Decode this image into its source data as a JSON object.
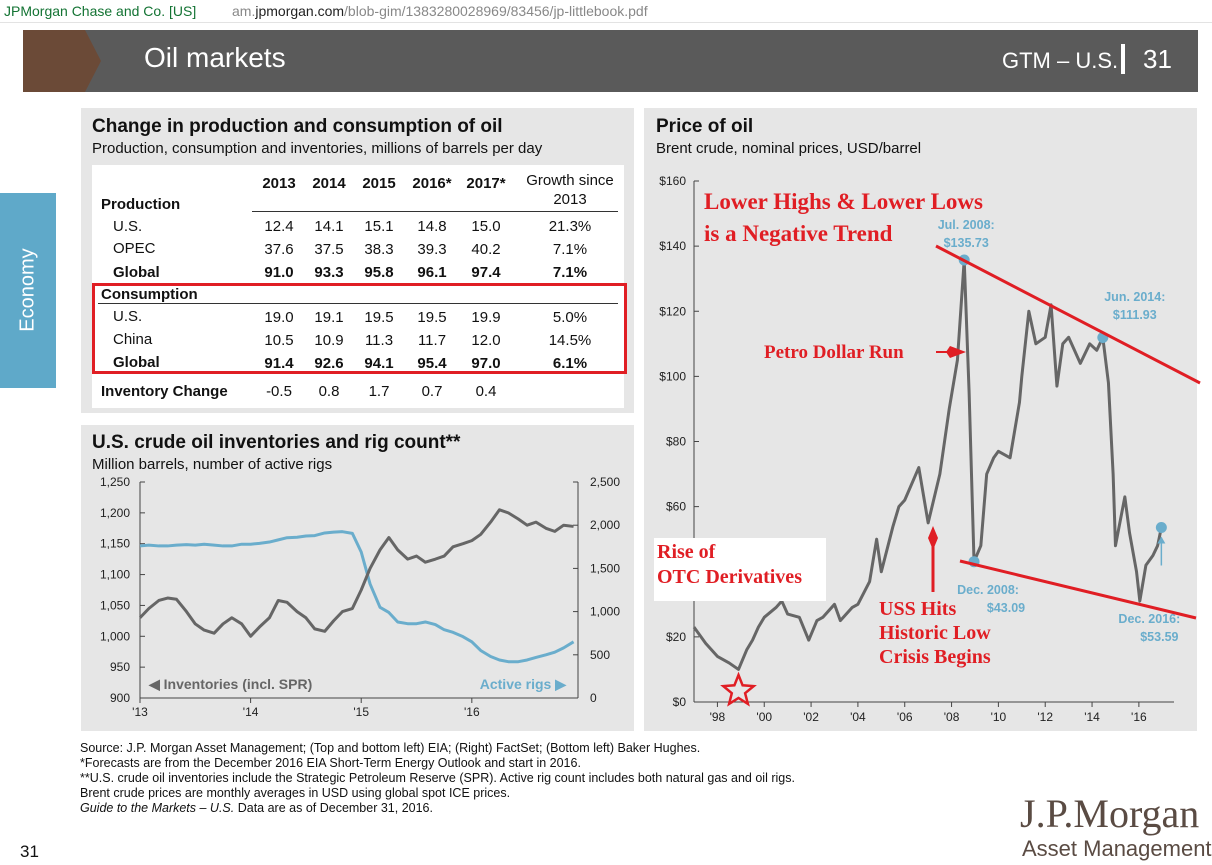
{
  "browser": {
    "site": "JPMorgan Chase and Co. [US]",
    "url_prefix": "am.",
    "url_host": "jpmorgan.com",
    "url_path": "/blob-gim/1383280028969/83456/jp-littlebook.pdf"
  },
  "header": {
    "title": "Oil markets",
    "gtm": "GTM – U.S.",
    "page": "31",
    "brown": "#6b4a37",
    "band": "#5a5a5a"
  },
  "side_tab": {
    "label": "Economy",
    "color": "#5fa9c9"
  },
  "table_panel": {
    "title": "Change in production and consumption of oil",
    "subtitle": "Production, consumption and inventories, millions of barrels per day",
    "years": [
      "2013",
      "2014",
      "2015",
      "2016*",
      "2017*"
    ],
    "growth_header": [
      "Growth since",
      "2013"
    ],
    "sections": [
      {
        "label": "Production",
        "rows": [
          {
            "label": "U.S.",
            "values": [
              "12.4",
              "14.1",
              "15.1",
              "14.8",
              "15.0"
            ],
            "growth": "21.3%",
            "bold": false
          },
          {
            "label": "OPEC",
            "values": [
              "37.6",
              "37.5",
              "38.3",
              "39.3",
              "40.2"
            ],
            "growth": "7.1%",
            "bold": false
          },
          {
            "label": "Global",
            "values": [
              "91.0",
              "93.3",
              "95.8",
              "96.1",
              "97.4"
            ],
            "growth": "7.1%",
            "bold": true
          }
        ]
      },
      {
        "label": "Consumption",
        "rows": [
          {
            "label": "U.S.",
            "values": [
              "19.0",
              "19.1",
              "19.5",
              "19.5",
              "19.9"
            ],
            "growth": "5.0%",
            "bold": false
          },
          {
            "label": "China",
            "values": [
              "10.5",
              "10.9",
              "11.3",
              "11.7",
              "12.0"
            ],
            "growth": "14.5%",
            "bold": false
          },
          {
            "label": "Global",
            "values": [
              "91.4",
              "92.6",
              "94.1",
              "95.4",
              "97.0"
            ],
            "growth": "6.1%",
            "bold": true
          }
        ]
      }
    ],
    "inventory": {
      "label": "Inventory Change",
      "values": [
        "-0.5",
        "0.8",
        "1.7",
        "0.7",
        "0.4"
      ]
    },
    "highlight_color": "#e01e24"
  },
  "inventory_panel": {
    "title": "U.S. crude oil inventories and rig count**",
    "subtitle": "Million barrels, number of active rigs",
    "left_series_label": "◀ Inventories (incl. SPR)",
    "right_series_label": "Active rigs ▶",
    "colors": {
      "inventories": "#666666",
      "rigs": "#6aadcc"
    }
  },
  "oil_panel": {
    "title": "Price of oil",
    "subtitle": "Brent crude, nominal prices, USD/barrel",
    "annotations": {
      "trend_line1": "Lower Highs & Lower Lows",
      "trend_line2": "is a Negative Trend",
      "petro": "Petro Dollar Run",
      "otc1": "Rise of",
      "otc2": "OTC Derivatives",
      "uss1": "USS Hits",
      "uss2": "Historic Low",
      "uss3": "Crisis Begins"
    },
    "callouts": [
      {
        "date": "Jul. 2008:",
        "value": "$135.73"
      },
      {
        "date": "Jun. 2014:",
        "value": "$111.93"
      },
      {
        "date": "Dec. 2008:",
        "value": "$43.09"
      },
      {
        "date": "Dec. 2016:",
        "value": "$53.59"
      }
    ],
    "colors": {
      "price": "#666666",
      "marker": "#6aadcc",
      "annotation": "#e01e24"
    }
  },
  "chart_data": [
    {
      "type": "line",
      "name": "inventories_and_rigs",
      "x_ticks": [
        "'13",
        "'14",
        "'15",
        "'16"
      ],
      "x_range": [
        2013.0,
        2016.96
      ],
      "y_left": {
        "range": [
          900,
          1250
        ],
        "ticks": [
          "900",
          "950",
          "1,000",
          "1,050",
          "1,100",
          "1,150",
          "1,200",
          "1,250"
        ]
      },
      "y_right": {
        "range": [
          0,
          2500
        ],
        "ticks": [
          "0",
          "500",
          "1,000",
          "1,500",
          "2,000",
          "2,500"
        ]
      },
      "series": [
        {
          "name": "Inventories (incl. SPR)",
          "axis": "left",
          "x": [
            2013.0,
            2013.08,
            2013.17,
            2013.25,
            2013.33,
            2013.42,
            2013.5,
            2013.58,
            2013.67,
            2013.75,
            2013.83,
            2013.92,
            2014.0,
            2014.08,
            2014.17,
            2014.25,
            2014.33,
            2014.42,
            2014.5,
            2014.58,
            2014.67,
            2014.75,
            2014.83,
            2014.92,
            2015.0,
            2015.08,
            2015.17,
            2015.25,
            2015.33,
            2015.42,
            2015.5,
            2015.58,
            2015.67,
            2015.75,
            2015.83,
            2015.92,
            2016.0,
            2016.08,
            2016.17,
            2016.25,
            2016.33,
            2016.42,
            2016.5,
            2016.58,
            2016.67,
            2016.75,
            2016.83,
            2016.92
          ],
          "values": [
            1030,
            1045,
            1058,
            1062,
            1060,
            1040,
            1020,
            1010,
            1005,
            1020,
            1030,
            1020,
            1000,
            1015,
            1030,
            1058,
            1055,
            1040,
            1030,
            1012,
            1008,
            1025,
            1040,
            1045,
            1075,
            1110,
            1140,
            1160,
            1140,
            1125,
            1130,
            1120,
            1125,
            1130,
            1145,
            1150,
            1155,
            1165,
            1185,
            1205,
            1200,
            1190,
            1180,
            1185,
            1175,
            1170,
            1180,
            1178
          ]
        },
        {
          "name": "Active rigs",
          "axis": "right",
          "x": [
            2013.0,
            2013.08,
            2013.17,
            2013.25,
            2013.33,
            2013.42,
            2013.5,
            2013.58,
            2013.67,
            2013.75,
            2013.83,
            2013.92,
            2014.0,
            2014.08,
            2014.17,
            2014.25,
            2014.33,
            2014.42,
            2014.5,
            2014.58,
            2014.67,
            2014.75,
            2014.83,
            2014.92,
            2015.0,
            2015.08,
            2015.17,
            2015.25,
            2015.33,
            2015.42,
            2015.5,
            2015.58,
            2015.67,
            2015.75,
            2015.83,
            2015.92,
            2016.0,
            2016.08,
            2016.17,
            2016.25,
            2016.33,
            2016.42,
            2016.5,
            2016.58,
            2016.67,
            2016.75,
            2016.83,
            2016.92
          ],
          "values": [
            1760,
            1770,
            1760,
            1760,
            1770,
            1775,
            1770,
            1780,
            1770,
            1760,
            1760,
            1780,
            1780,
            1790,
            1805,
            1830,
            1855,
            1860,
            1875,
            1880,
            1910,
            1920,
            1925,
            1905,
            1690,
            1320,
            1050,
            990,
            880,
            860,
            860,
            880,
            850,
            790,
            760,
            710,
            650,
            550,
            480,
            440,
            420,
            420,
            440,
            470,
            500,
            530,
            580,
            650
          ]
        }
      ]
    },
    {
      "type": "line",
      "name": "brent_price",
      "x_ticks": [
        "'98",
        "'00",
        "'02",
        "'04",
        "'06",
        "'08",
        "'10",
        "'12",
        "'14",
        "'16"
      ],
      "x_range": [
        1997.0,
        2017.5
      ],
      "y_ticks": [
        "$0",
        "$20",
        "$40",
        "$60",
        "$80",
        "$100",
        "$120",
        "$140",
        "$160"
      ],
      "y_range": [
        0,
        160
      ],
      "series": [
        {
          "name": "Brent crude",
          "x": [
            1997.0,
            1997.5,
            1998.0,
            1998.5,
            1998.9,
            1999.25,
            1999.5,
            1999.75,
            2000.0,
            2000.5,
            2000.75,
            2001.0,
            2001.5,
            2001.9,
            2002.25,
            2002.5,
            2003.0,
            2003.25,
            2003.75,
            2004.0,
            2004.5,
            2004.8,
            2005.0,
            2005.5,
            2005.75,
            2006.0,
            2006.6,
            2007.0,
            2007.5,
            2007.9,
            2008.25,
            2008.54,
            2008.75,
            2008.96,
            2009.25,
            2009.5,
            2009.8,
            2010.0,
            2010.5,
            2010.9,
            2011.0,
            2011.3,
            2011.6,
            2012.0,
            2012.25,
            2012.5,
            2012.75,
            2013.0,
            2013.5,
            2013.9,
            2014.2,
            2014.46,
            2014.7,
            2014.9,
            2015.0,
            2015.4,
            2015.6,
            2015.9,
            2016.04,
            2016.3,
            2016.6,
            2016.8,
            2016.96
          ],
          "values": [
            23,
            18,
            14,
            12,
            10,
            16,
            19,
            23,
            26,
            29,
            31,
            27,
            26,
            19,
            25,
            26,
            30,
            25,
            29,
            30,
            37,
            50,
            40,
            54,
            60,
            62,
            72,
            55,
            70,
            90,
            105,
            135.73,
            95,
            43.09,
            48,
            70,
            75,
            77,
            75,
            92,
            100,
            120,
            110,
            112,
            122,
            97,
            110,
            112,
            104,
            110,
            108,
            111.93,
            98,
            70,
            48,
            63,
            52,
            40,
            31,
            42,
            45,
            48,
            53.59
          ]
        }
      ],
      "callout_points": [
        {
          "x": 2008.54,
          "y": 135.73
        },
        {
          "x": 2014.46,
          "y": 111.93
        },
        {
          "x": 2008.96,
          "y": 43.09
        },
        {
          "x": 2016.96,
          "y": 53.59
        }
      ]
    }
  ],
  "footnotes": [
    "Source: J.P. Morgan Asset Management; (Top and bottom left) EIA; (Right) FactSet; (Bottom left) Baker Hughes.",
    "*Forecasts are from the December 2016 EIA Short-Term Energy Outlook and start in 2016.",
    "**U.S. crude oil inventories include the Strategic Petroleum Reserve (SPR). Active rig count includes both natural gas and oil rigs.",
    "Brent crude prices are monthly averages in USD using global spot ICE prices.",
    "Guide to the Markets – U.S. Data are as of December 31, 2016."
  ],
  "guide_italic": "Guide to the Markets – U.S.",
  "guide_rest": " Data are as of December 31, 2016.",
  "brand": {
    "logo": "J.P.Morgan",
    "sub": "Asset Management",
    "page": "31"
  }
}
